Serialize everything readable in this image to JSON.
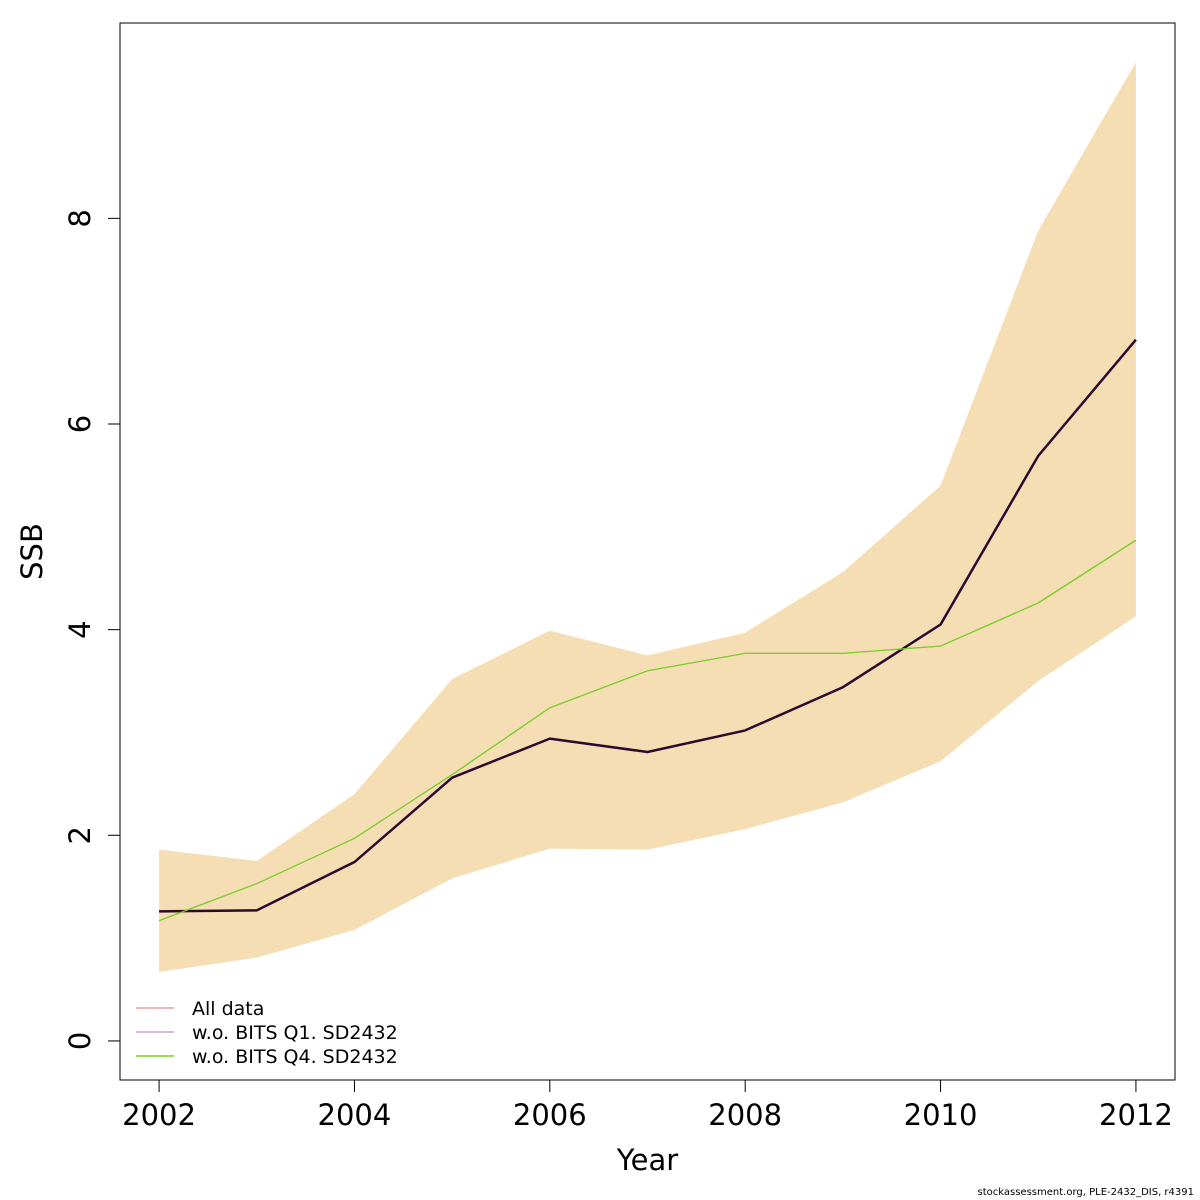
{
  "chart_data": {
    "type": "line",
    "title": "",
    "xlabel": "Year",
    "ylabel": "SSB",
    "xlim": [
      2001.6,
      2012.4
    ],
    "ylim": [
      -0.38,
      9.9
    ],
    "x_ticks": [
      "2002",
      "2004",
      "2006",
      "2008",
      "2010",
      "2012"
    ],
    "y_ticks": [
      "0",
      "2",
      "4",
      "6",
      "8"
    ],
    "x": [
      2002,
      2003,
      2004,
      2005,
      2006,
      2007,
      2008,
      2009,
      2010,
      2011,
      2012
    ],
    "band": {
      "color": "#F5DEB3",
      "lower": [
        0.67,
        0.81,
        1.08,
        1.58,
        1.87,
        1.86,
        2.06,
        2.32,
        2.72,
        3.5,
        4.13
      ],
      "upper": [
        1.86,
        1.75,
        2.4,
        3.52,
        3.99,
        3.75,
        3.97,
        4.56,
        5.4,
        7.88,
        9.52
      ]
    },
    "series": [
      {
        "name": "All data",
        "color": "#E8A0A0",
        "values": [
          1.26,
          1.27,
          1.74,
          2.56,
          2.94,
          2.81,
          3.02,
          3.44,
          4.05,
          5.69,
          6.82
        ]
      },
      {
        "name": "w.o. BITS Q1. SD2432",
        "color": "#C8A0D0",
        "values": [
          1.26,
          1.27,
          1.74,
          2.56,
          2.94,
          2.81,
          3.02,
          3.44,
          4.05,
          5.69,
          6.82
        ]
      },
      {
        "name": "w.o. BITS Q4. SD2432",
        "color": "#7CCD2C",
        "values": [
          1.17,
          1.53,
          1.97,
          2.59,
          3.24,
          3.6,
          3.77,
          3.77,
          3.84,
          4.26,
          4.87
        ]
      }
    ],
    "main_line": {
      "color": "#2A0A2E",
      "values": [
        1.26,
        1.27,
        1.74,
        2.56,
        2.94,
        2.81,
        3.02,
        3.44,
        4.05,
        5.69,
        6.82
      ]
    },
    "legend_position": "bottom-left",
    "grid": false
  },
  "footer": "stockassessment.org, PLE-2432_DIS, r4391"
}
